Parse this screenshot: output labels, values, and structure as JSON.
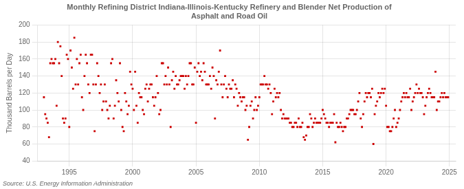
{
  "chart_data": {
    "type": "scatter",
    "title": "Monthly Refining District Indiana-Illinois-Kentucky Refinery and Blender Net Production of\nAsphalt and Road Oil",
    "ylabel": "Thousand Barrels per Day",
    "annotations": [
      "Source: U.S. Energy Information Administration"
    ],
    "color": "#cc0000",
    "marker": "square",
    "grid": true,
    "xlim": [
      1992.5,
      2025.5
    ],
    "xticks": [
      1995,
      2000,
      2005,
      2010,
      2015,
      2020,
      2025
    ],
    "ylim": [
      40,
      200
    ],
    "yticks": [
      40,
      60,
      80,
      100,
      120,
      140,
      160,
      180,
      200
    ],
    "x": [
      1993.0,
      1993.1,
      1993.2,
      1993.3,
      1993.4,
      1993.5,
      1993.6,
      1993.7,
      1993.8,
      1993.9,
      1994.0,
      1994.1,
      1994.2,
      1994.3,
      1994.4,
      1994.5,
      1994.6,
      1994.7,
      1994.8,
      1994.9,
      1995.0,
      1995.1,
      1995.2,
      1995.3,
      1995.4,
      1995.5,
      1995.6,
      1995.7,
      1995.8,
      1995.9,
      1996.0,
      1996.1,
      1996.2,
      1996.3,
      1996.4,
      1996.5,
      1996.6,
      1996.7,
      1996.8,
      1996.9,
      1997.0,
      1997.1,
      1997.2,
      1997.3,
      1997.4,
      1997.5,
      1997.6,
      1997.7,
      1997.8,
      1997.9,
      1998.0,
      1998.1,
      1998.2,
      1998.3,
      1998.4,
      1998.5,
      1998.6,
      1998.7,
      1998.8,
      1998.9,
      1999.0,
      1999.1,
      1999.2,
      1999.3,
      1999.4,
      1999.5,
      1999.6,
      1999.7,
      1999.8,
      1999.9,
      2000.0,
      2000.1,
      2000.2,
      2000.3,
      2000.4,
      2000.5,
      2000.6,
      2000.7,
      2000.8,
      2000.9,
      2001.0,
      2001.1,
      2001.2,
      2001.3,
      2001.4,
      2001.5,
      2001.6,
      2001.7,
      2001.8,
      2001.9,
      2002.0,
      2002.1,
      2002.2,
      2002.3,
      2002.4,
      2002.5,
      2002.6,
      2002.7,
      2002.8,
      2002.9,
      2003.0,
      2003.1,
      2003.2,
      2003.3,
      2003.4,
      2003.5,
      2003.6,
      2003.7,
      2003.8,
      2003.9,
      2004.0,
      2004.1,
      2004.2,
      2004.3,
      2004.4,
      2004.5,
      2004.6,
      2004.7,
      2004.8,
      2004.9,
      2005.0,
      2005.1,
      2005.2,
      2005.3,
      2005.4,
      2005.5,
      2005.6,
      2005.7,
      2005.8,
      2005.9,
      2006.0,
      2006.1,
      2006.2,
      2006.3,
      2006.4,
      2006.5,
      2006.6,
      2006.7,
      2006.8,
      2006.9,
      2007.0,
      2007.1,
      2007.2,
      2007.3,
      2007.4,
      2007.5,
      2007.6,
      2007.7,
      2007.8,
      2007.9,
      2008.0,
      2008.1,
      2008.2,
      2008.3,
      2008.4,
      2008.5,
      2008.6,
      2008.7,
      2008.8,
      2008.9,
      2009.0,
      2009.1,
      2009.2,
      2009.3,
      2009.4,
      2009.5,
      2009.6,
      2009.7,
      2009.8,
      2009.9,
      2010.0,
      2010.1,
      2010.2,
      2010.3,
      2010.4,
      2010.5,
      2010.6,
      2010.7,
      2010.8,
      2010.9,
      2011.0,
      2011.1,
      2011.2,
      2011.3,
      2011.4,
      2011.5,
      2011.6,
      2011.7,
      2011.8,
      2011.9,
      2012.0,
      2012.1,
      2012.2,
      2012.3,
      2012.4,
      2012.5,
      2012.6,
      2012.7,
      2012.8,
      2012.9,
      2013.0,
      2013.1,
      2013.2,
      2013.3,
      2013.4,
      2013.5,
      2013.6,
      2013.7,
      2013.8,
      2013.9,
      2014.0,
      2014.1,
      2014.2,
      2014.3,
      2014.4,
      2014.5,
      2014.6,
      2014.7,
      2014.8,
      2014.9,
      2015.0,
      2015.1,
      2015.2,
      2015.3,
      2015.4,
      2015.5,
      2015.6,
      2015.7,
      2015.8,
      2015.9,
      2016.0,
      2016.1,
      2016.2,
      2016.3,
      2016.4,
      2016.5,
      2016.6,
      2016.7,
      2016.8,
      2016.9,
      2017.0,
      2017.1,
      2017.2,
      2017.3,
      2017.4,
      2017.5,
      2017.6,
      2017.7,
      2017.8,
      2017.9,
      2018.0,
      2018.1,
      2018.2,
      2018.3,
      2018.4,
      2018.5,
      2018.6,
      2018.7,
      2018.8,
      2018.9,
      2019.0,
      2019.1,
      2019.2,
      2019.3,
      2019.4,
      2019.5,
      2019.6,
      2019.7,
      2019.8,
      2019.9,
      2020.0,
      2020.1,
      2020.2,
      2020.3,
      2020.4,
      2020.5,
      2020.6,
      2020.7,
      2020.8,
      2020.9,
      2021.0,
      2021.1,
      2021.2,
      2021.3,
      2021.4,
      2021.5,
      2021.6,
      2021.7,
      2021.8,
      2021.9,
      2022.0,
      2022.1,
      2022.2,
      2022.3,
      2022.4,
      2022.5,
      2022.6,
      2022.7,
      2022.8,
      2022.9,
      2023.0,
      2023.1,
      2023.2,
      2023.3,
      2023.4,
      2023.5,
      2023.6,
      2023.7,
      2023.8,
      2023.9,
      2024.0,
      2024.1,
      2024.2,
      2024.3,
      2024.4,
      2024.5,
      2024.6,
      2024.7,
      2024.8,
      2024.9
    ],
    "values": [
      115,
      95,
      90,
      85,
      68,
      155,
      160,
      155,
      155,
      160,
      105,
      180,
      155,
      175,
      140,
      90,
      85,
      90,
      165,
      160,
      80,
      170,
      150,
      125,
      185,
      130,
      160,
      130,
      155,
      165,
      115,
      100,
      140,
      165,
      155,
      130,
      120,
      165,
      165,
      130,
      75,
      130,
      155,
      140,
      120,
      130,
      100,
      110,
      130,
      110,
      100,
      90,
      105,
      155,
      160,
      90,
      105,
      135,
      120,
      110,
      155,
      100,
      80,
      75,
      120,
      110,
      95,
      105,
      145,
      130,
      125,
      100,
      145,
      105,
      85,
      120,
      115,
      115,
      100,
      95,
      125,
      130,
      110,
      125,
      130,
      130,
      115,
      105,
      115,
      140,
      120,
      95,
      100,
      155,
      155,
      130,
      140,
      130,
      150,
      130,
      80,
      135,
      145,
      125,
      140,
      130,
      130,
      135,
      140,
      140,
      140,
      125,
      140,
      130,
      140,
      155,
      155,
      130,
      130,
      150,
      85,
      145,
      155,
      140,
      145,
      135,
      155,
      145,
      130,
      130,
      130,
      140,
      125,
      150,
      140,
      90,
      135,
      130,
      145,
      170,
      130,
      115,
      130,
      140,
      125,
      115,
      130,
      125,
      125,
      135,
      115,
      130,
      125,
      105,
      120,
      115,
      110,
      115,
      115,
      100,
      105,
      65,
      80,
      105,
      110,
      90,
      100,
      115,
      100,
      105,
      115,
      130,
      130,
      130,
      140,
      130,
      130,
      125,
      130,
      120,
      95,
      110,
      125,
      115,
      120,
      115,
      120,
      100,
      90,
      95,
      90,
      90,
      90,
      90,
      85,
      85,
      80,
      80,
      85,
      85,
      80,
      90,
      80,
      80,
      85,
      68,
      65,
      70,
      80,
      80,
      95,
      90,
      80,
      85,
      90,
      85,
      85,
      85,
      85,
      90,
      100,
      95,
      90,
      85,
      85,
      80,
      85,
      85,
      85,
      95,
      62,
      85,
      80,
      80,
      85,
      80,
      75,
      80,
      80,
      90,
      90,
      95,
      100,
      100,
      100,
      95,
      95,
      100,
      110,
      120,
      90,
      80,
      95,
      110,
      120,
      115,
      120,
      120,
      115,
      125,
      60,
      95,
      105,
      110,
      120,
      115,
      120,
      125,
      120,
      125,
      105,
      80,
      80,
      75,
      75,
      80,
      90,
      100,
      80,
      85,
      90,
      100,
      110,
      115,
      120,
      115,
      120,
      115,
      115,
      125,
      100,
      110,
      115,
      120,
      130,
      120,
      125,
      120,
      120,
      115,
      95,
      105,
      115,
      120,
      125,
      120,
      115,
      115,
      115,
      145,
      100,
      110,
      110,
      115,
      120,
      115,
      120,
      115,
      115,
      115
    ]
  }
}
